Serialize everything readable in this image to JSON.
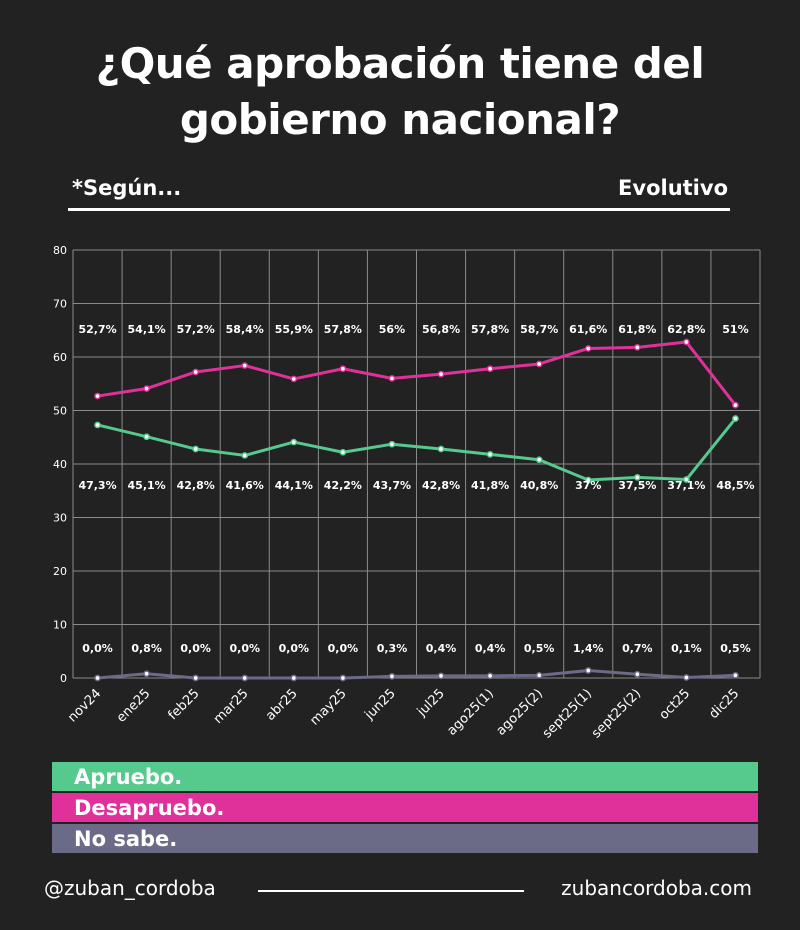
{
  "header": {
    "title_line1": "¿Qué aprobación tiene del",
    "title_line2": "gobierno nacional?",
    "subtitle_left": "*Según...",
    "subtitle_right": "Evolutivo"
  },
  "chart_data": {
    "type": "line",
    "categories": [
      "nov24",
      "ene25",
      "feb25",
      "mar25",
      "abr25",
      "may25",
      "jun25",
      "jul25",
      "ago25(1)",
      "ago25(2)",
      "sept25(1)",
      "sept25(2)",
      "oct25",
      "dic25"
    ],
    "yticks": [
      "0",
      "10",
      "20",
      "30",
      "40",
      "50",
      "60",
      "70",
      "80"
    ],
    "ylim": [
      0,
      80
    ],
    "grid": true,
    "series": [
      {
        "name": "Apruebo.",
        "color": "#56c98d",
        "values": [
          47.3,
          45.1,
          42.8,
          41.6,
          44.1,
          42.2,
          43.7,
          42.8,
          41.8,
          40.8,
          37,
          37.5,
          37.1,
          48.5
        ],
        "labels": [
          "47,3%",
          "45,1%",
          "42,8%",
          "41,6%",
          "44,1%",
          "42,2%",
          "43,7%",
          "42,8%",
          "41,8%",
          "40,8%",
          "37%",
          "37,5%",
          "37,1%",
          "48,5%"
        ]
      },
      {
        "name": "Desapruebo.",
        "color": "#e0319b",
        "values": [
          52.7,
          54.1,
          57.2,
          58.4,
          55.9,
          57.8,
          56,
          56.8,
          57.8,
          58.7,
          61.6,
          61.8,
          62.8,
          51
        ],
        "labels": [
          "52,7%",
          "54,1%",
          "57,2%",
          "58,4%",
          "55,9%",
          "57,8%",
          "56%",
          "56,8%",
          "57,8%",
          "58,7%",
          "61,6%",
          "61,8%",
          "62,8%",
          "51%"
        ]
      },
      {
        "name": "No sabe.",
        "color": "#6b6b88",
        "values": [
          0,
          0.8,
          0,
          0,
          0,
          0,
          0.3,
          0.4,
          0.4,
          0.5,
          1.4,
          0.7,
          0.1,
          0.5
        ],
        "labels": [
          "0,0%",
          "0,8%",
          "0,0%",
          "0,0%",
          "0,0%",
          "0,0%",
          "0,3%",
          "0,4%",
          "0,4%",
          "0,5%",
          "1,4%",
          "0,7%",
          "0,1%",
          "0,5%"
        ]
      }
    ]
  },
  "legend": [
    {
      "label": "Apruebo.",
      "color": "#56c98d"
    },
    {
      "label": "Desapruebo.",
      "color": "#e0319b"
    },
    {
      "label": "No sabe.",
      "color": "#6b6b88"
    }
  ],
  "footer": {
    "handle": "@zuban_cordoba",
    "website": "zubancordoba.com"
  }
}
